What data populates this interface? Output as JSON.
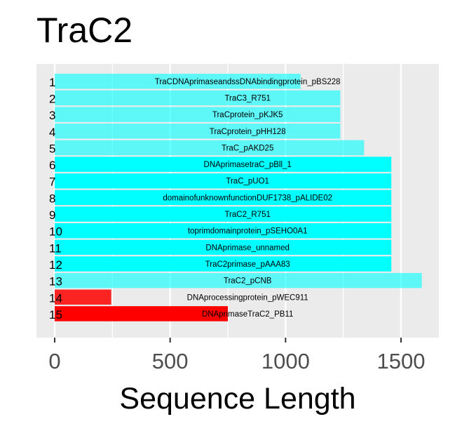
{
  "chart_data": {
    "type": "bar",
    "orientation": "horizontal",
    "title": "TraC2",
    "xlabel": "Sequence Length",
    "ylabel": "",
    "xlim": [
      -80,
      1665
    ],
    "xticks": [
      0,
      500,
      1000,
      1500
    ],
    "grid": true,
    "legend": "none",
    "colors": {
      "panel": "#ebebeb",
      "grid": "#ffffff",
      "bar_cyan": "#00ffff",
      "bar_red": "#ff0000"
    },
    "bars": [
      {
        "id": "1",
        "label": "TraCDNAprimaseandssDNAbindingprotein_pBS228",
        "value": 1065,
        "color": "#00ffff",
        "opacity": 0.6
      },
      {
        "id": "2",
        "label": "TraC3_R751",
        "value": 1237,
        "color": "#00ffff",
        "opacity": 0.6
      },
      {
        "id": "3",
        "label": "TraCprotein_pKJK5",
        "value": 1237,
        "color": "#00ffff",
        "opacity": 0.6
      },
      {
        "id": "4",
        "label": "TraCprotein_pHH128",
        "value": 1237,
        "color": "#00ffff",
        "opacity": 0.6
      },
      {
        "id": "5",
        "label": "TraC_pAKD25",
        "value": 1340,
        "color": "#00ffff",
        "opacity": 0.6
      },
      {
        "id": "6",
        "label": "DNAprimasetraC_pBll_1",
        "value": 1458,
        "color": "#00ffff",
        "opacity": 1
      },
      {
        "id": "7",
        "label": "TraC_pUO1",
        "value": 1458,
        "color": "#00ffff",
        "opacity": 1
      },
      {
        "id": "8",
        "label": "domainofunknownfunctionDUF1738_pALIDE02",
        "value": 1458,
        "color": "#00ffff",
        "opacity": 1
      },
      {
        "id": "9",
        "label": "TraC2_R751",
        "value": 1458,
        "color": "#00ffff",
        "opacity": 1
      },
      {
        "id": "10",
        "label": "toprimdomainprotein_pSEHO0A1",
        "value": 1458,
        "color": "#00ffff",
        "opacity": 1
      },
      {
        "id": "11",
        "label": "DNAprimase_unnamed",
        "value": 1458,
        "color": "#00ffff",
        "opacity": 1
      },
      {
        "id": "12",
        "label": "TraC2primase_pAAA83",
        "value": 1458,
        "color": "#00ffff",
        "opacity": 1
      },
      {
        "id": "13",
        "label": "TraC2_pCNB",
        "value": 1590,
        "color": "#00ffff",
        "opacity": 0.6
      },
      {
        "id": "14",
        "label": "DNAprocessingprotein_pWEC911",
        "value": 245,
        "color": "#ff0000",
        "opacity": 0.85
      },
      {
        "id": "15",
        "label": "DNAprimaseTraC2_PB11",
        "value": 750,
        "color": "#ff0000",
        "opacity": 1
      }
    ]
  }
}
